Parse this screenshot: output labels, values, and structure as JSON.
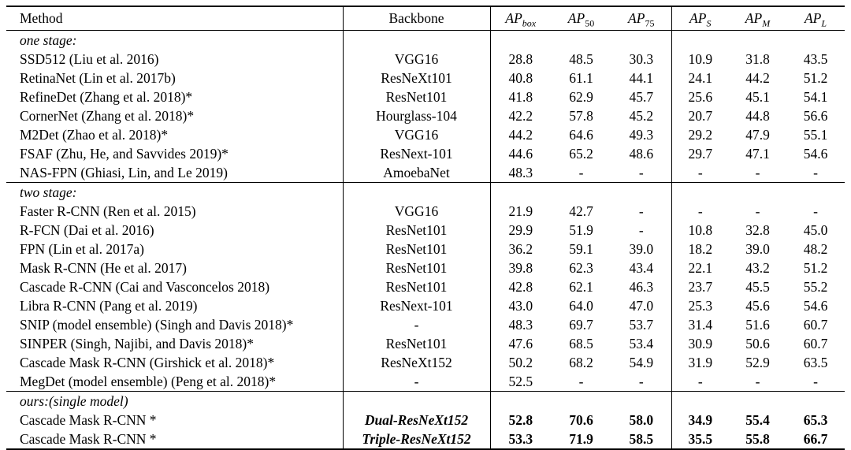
{
  "table": {
    "columns": [
      {
        "key": "method",
        "base": "Method",
        "sub": ""
      },
      {
        "key": "backbone",
        "base": "Backbone",
        "sub": ""
      },
      {
        "key": "ap_box",
        "base": "AP",
        "sub": "box"
      },
      {
        "key": "ap_50",
        "base": "AP",
        "sub": "50"
      },
      {
        "key": "ap_75",
        "base": "AP",
        "sub": "75"
      },
      {
        "key": "ap_s",
        "base": "AP",
        "sub": "S"
      },
      {
        "key": "ap_m",
        "base": "AP",
        "sub": "M"
      },
      {
        "key": "ap_l",
        "base": "AP",
        "sub": "L"
      }
    ],
    "sections": [
      {
        "label": "one stage:",
        "rows": [
          {
            "method": "SSD512 (Liu et al. 2016)",
            "backbone": "VGG16",
            "values": [
              "28.8",
              "48.5",
              "30.3",
              "10.9",
              "31.8",
              "43.5"
            ]
          },
          {
            "method": "RetinaNet (Lin et al. 2017b)",
            "backbone": "ResNeXt101",
            "values": [
              "40.8",
              "61.1",
              "44.1",
              "24.1",
              "44.2",
              "51.2"
            ]
          },
          {
            "method": "RefineDet (Zhang et al. 2018)*",
            "backbone": "ResNet101",
            "values": [
              "41.8",
              "62.9",
              "45.7",
              "25.6",
              "45.1",
              "54.1"
            ]
          },
          {
            "method": "CornerNet (Zhang et al. 2018)*",
            "backbone": "Hourglass-104",
            "values": [
              "42.2",
              "57.8",
              "45.2",
              "20.7",
              "44.8",
              "56.6"
            ]
          },
          {
            "method": "M2Det (Zhao et al. 2018)*",
            "backbone": "VGG16",
            "values": [
              "44.2",
              "64.6",
              "49.3",
              "29.2",
              "47.9",
              "55.1"
            ]
          },
          {
            "method": "FSAF (Zhu, He, and Savvides 2019)*",
            "backbone": "ResNext-101",
            "values": [
              "44.6",
              "65.2",
              "48.6",
              "29.7",
              "47.1",
              "54.6"
            ]
          },
          {
            "method": "NAS-FPN (Ghiasi, Lin, and Le 2019)",
            "backbone": "AmoebaNet",
            "values": [
              "48.3",
              "-",
              "-",
              "-",
              "-",
              "-"
            ]
          }
        ]
      },
      {
        "label": "two stage:",
        "rows": [
          {
            "method": "Faster R-CNN (Ren et al. 2015)",
            "backbone": "VGG16",
            "values": [
              "21.9",
              "42.7",
              "-",
              "-",
              "-",
              "-"
            ]
          },
          {
            "method": "R-FCN (Dai et al. 2016)",
            "backbone": "ResNet101",
            "values": [
              "29.9",
              "51.9",
              "-",
              "10.8",
              "32.8",
              "45.0"
            ]
          },
          {
            "method": "FPN (Lin et al. 2017a)",
            "backbone": "ResNet101",
            "values": [
              "36.2",
              "59.1",
              "39.0",
              "18.2",
              "39.0",
              "48.2"
            ]
          },
          {
            "method": "Mask R-CNN (He et al. 2017)",
            "backbone": "ResNet101",
            "values": [
              "39.8",
              "62.3",
              "43.4",
              "22.1",
              "43.2",
              "51.2"
            ]
          },
          {
            "method": "Cascade R-CNN (Cai and Vasconcelos 2018)",
            "backbone": "ResNet101",
            "values": [
              "42.8",
              "62.1",
              "46.3",
              "23.7",
              "45.5",
              "55.2"
            ]
          },
          {
            "method": "Libra R-CNN (Pang et al. 2019)",
            "backbone": "ResNext-101",
            "values": [
              "43.0",
              "64.0",
              "47.0",
              "25.3",
              "45.6",
              "54.6"
            ]
          },
          {
            "method": "SNIP (model ensemble) (Singh and Davis 2018)*",
            "backbone": "-",
            "values": [
              "48.3",
              "69.7",
              "53.7",
              "31.4",
              "51.6",
              "60.7"
            ]
          },
          {
            "method": "SINPER (Singh, Najibi, and Davis 2018)*",
            "backbone": "ResNet101",
            "values": [
              "47.6",
              "68.5",
              "53.4",
              "30.9",
              "50.6",
              "60.7"
            ]
          },
          {
            "method": "Cascade Mask R-CNN (Girshick et al. 2018)*",
            "backbone": "ResNeXt152",
            "values": [
              "50.2",
              "68.2",
              "54.9",
              "31.9",
              "52.9",
              "63.5"
            ]
          },
          {
            "method": "MegDet (model ensemble) (Peng et al. 2018)*",
            "backbone": "-",
            "values": [
              "52.5",
              "-",
              "-",
              "-",
              "-",
              "-"
            ]
          }
        ]
      },
      {
        "label": "ours:(single model)",
        "rows": [
          {
            "method": "Cascade Mask R-CNN *",
            "backbone": "Dual-ResNeXt152",
            "values": [
              "52.8",
              "70.6",
              "58.0",
              "34.9",
              "55.4",
              "65.3"
            ],
            "emphasis": "bold"
          },
          {
            "method": "Cascade Mask R-CNN *",
            "backbone": "Triple-ResNeXt152",
            "values": [
              "53.3",
              "71.9",
              "58.5",
              "35.5",
              "55.8",
              "66.7"
            ],
            "emphasis": "bold"
          }
        ]
      }
    ]
  }
}
